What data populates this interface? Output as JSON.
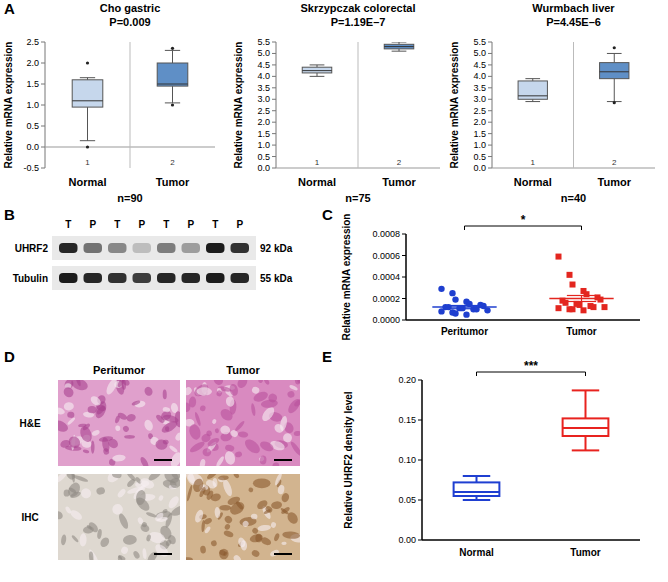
{
  "panel_labels": [
    "A",
    "B",
    "C",
    "D",
    "E"
  ],
  "chart_data": [
    {
      "type": "box",
      "title": "Cho gastric",
      "subtitle": "P=0.009",
      "y_label": "Relative mRNA expression",
      "categories": [
        "Normal",
        "Tumor"
      ],
      "box_labels": [
        "1",
        "2"
      ],
      "sample_label": "n=90",
      "colors": [
        "#c6d7ec",
        "#5f8fc6"
      ],
      "ylim": [
        -0.5,
        2.5
      ],
      "yticks": [
        -0.5,
        {
          "value": 0,
          "label": "0.0"
        },
        0.5,
        {
          "value": 1,
          "label": "1.0"
        },
        1.5,
        {
          "value": 2,
          "label": "2.0"
        },
        2.5
      ],
      "boxes": [
        {
          "whisker_low": 0.15,
          "q1": 0.95,
          "median": 1.1,
          "q3": 1.6,
          "whisker_high": 1.65,
          "outliers": [
            2.0,
            0.0
          ]
        },
        {
          "whisker_low": 1.05,
          "q1": 1.45,
          "median": 1.5,
          "q3": 2.0,
          "whisker_high": 2.3,
          "outliers": [
            2.35,
            1.0
          ]
        }
      ]
    },
    {
      "type": "box",
      "title": "Skrzypczak colorectal",
      "subtitle": "P=1.19E–7",
      "y_label": "Relative mRNA expression",
      "categories": [
        "Normal",
        "Tumor"
      ],
      "box_labels": [
        "1",
        "2"
      ],
      "sample_label": "n=75",
      "colors": [
        "#c6d7ec",
        "#5f8fc6"
      ],
      "ylim": [
        0,
        5.5
      ],
      "yticks": [
        {
          "value": 0,
          "label": "0.0"
        },
        0.5,
        {
          "value": 1,
          "label": "1.0"
        },
        1.5,
        {
          "value": 2,
          "label": "2.0"
        },
        2.5,
        {
          "value": 3,
          "label": "3.0"
        },
        3.5,
        {
          "value": 4,
          "label": "4.0"
        },
        4.5,
        {
          "value": 5,
          "label": "5.0"
        },
        5.5
      ],
      "boxes": [
        {
          "whisker_low": 4.0,
          "q1": 4.15,
          "median": 4.25,
          "q3": 4.4,
          "whisker_high": 4.5,
          "outliers": []
        },
        {
          "whisker_low": 5.1,
          "q1": 5.2,
          "median": 5.3,
          "q3": 5.4,
          "whisker_high": 5.5,
          "outliers": []
        }
      ]
    },
    {
      "type": "box",
      "title": "Wurmbach liver",
      "subtitle": "P=4.45E–6",
      "y_label": "Relative mRNA expression",
      "categories": [
        "Normal",
        "Tumor"
      ],
      "box_labels": [
        "1",
        "2"
      ],
      "sample_label": "n=40",
      "colors": [
        "#c6d7ec",
        "#5f8fc6"
      ],
      "ylim": [
        0,
        5.5
      ],
      "yticks": [
        {
          "value": 0,
          "label": "0.0"
        },
        0.5,
        {
          "value": 1,
          "label": "1.0"
        },
        1.5,
        {
          "value": 2,
          "label": "2.0"
        },
        2.5,
        {
          "value": 3,
          "label": "3.0"
        },
        3.5,
        {
          "value": 4,
          "label": "4.0"
        },
        4.5,
        {
          "value": 5,
          "label": "5.0"
        },
        5.5
      ],
      "boxes": [
        {
          "whisker_low": 2.9,
          "q1": 3.0,
          "median": 3.15,
          "q3": 3.8,
          "whisker_high": 3.9,
          "outliers": []
        },
        {
          "whisker_low": 2.9,
          "q1": 3.9,
          "median": 4.2,
          "q3": 4.6,
          "whisker_high": 5.0,
          "outliers": [
            5.25,
            2.85
          ]
        }
      ]
    },
    {
      "type": "dot",
      "y_label": "Relative mRNA expression",
      "categories": [
        "Peritumor",
        "Tumor"
      ],
      "significance": "*",
      "ylim": [
        0,
        0.0008
      ],
      "yticks": [
        {
          "value": 0,
          "label": "0.0000"
        },
        {
          "value": 0.0002,
          "label": "0.0002"
        },
        {
          "value": 0.0004,
          "label": "0.0004"
        },
        {
          "value": 0.0006,
          "label": "0.0006"
        },
        {
          "value": 0.0008,
          "label": "0.0008"
        }
      ],
      "groups": [
        {
          "color": "#1f3fcf",
          "marker": "circle",
          "mean": 0.00012,
          "error": 1.5e-05,
          "values": [
            0.00029,
            0.00025,
            0.00019,
            0.00017,
            0.00015,
            0.00014,
            0.00013,
            0.00012,
            0.00012,
            0.00011,
            0.00011,
            0.0001,
            0.0001,
            9e-05,
            8e-05,
            7e-05,
            6e-05,
            5e-05
          ]
        },
        {
          "color": "#e3261f",
          "marker": "square",
          "mean": 0.0002,
          "error": 2.8e-05,
          "values": [
            0.00059,
            0.00042,
            0.00033,
            0.00027,
            0.00024,
            0.00021,
            0.00019,
            0.00018,
            0.00016,
            0.00015,
            0.00014,
            0.00013,
            0.00012,
            0.00012,
            0.00011,
            0.0001,
            0.0001,
            9e-05
          ]
        }
      ]
    },
    {
      "type": "box",
      "y_label": "Relative UHRF2 density level",
      "categories": [
        "Normal",
        "Tumor"
      ],
      "significance": "***",
      "colors": [
        "#1f3fd1",
        "#e8231f"
      ],
      "ylim": [
        0,
        0.2
      ],
      "yticks": [
        {
          "value": 0,
          "label": "0.00"
        },
        0.05,
        {
          "value": 0.1,
          "label": "0.10"
        },
        0.15,
        {
          "value": 0.2,
          "label": "0.20"
        }
      ],
      "boxes": [
        {
          "whisker_low": 0.05,
          "q1": 0.055,
          "median": 0.06,
          "q3": 0.072,
          "whisker_high": 0.08,
          "outliers": []
        },
        {
          "whisker_low": 0.112,
          "q1": 0.13,
          "median": 0.14,
          "q3": 0.152,
          "whisker_high": 0.187,
          "outliers": []
        }
      ]
    }
  ],
  "blot": {
    "lane_labels": [
      "T",
      "P",
      "T",
      "P",
      "T",
      "P",
      "T",
      "P"
    ],
    "rows": [
      {
        "label": "UHRF2",
        "size": "92 kDa"
      },
      {
        "label": "Tubulin",
        "size": "55 kDa"
      }
    ]
  },
  "histology": {
    "columns": [
      "Peritumor",
      "Tumor"
    ],
    "rows": [
      "H&E",
      "IHC"
    ]
  }
}
